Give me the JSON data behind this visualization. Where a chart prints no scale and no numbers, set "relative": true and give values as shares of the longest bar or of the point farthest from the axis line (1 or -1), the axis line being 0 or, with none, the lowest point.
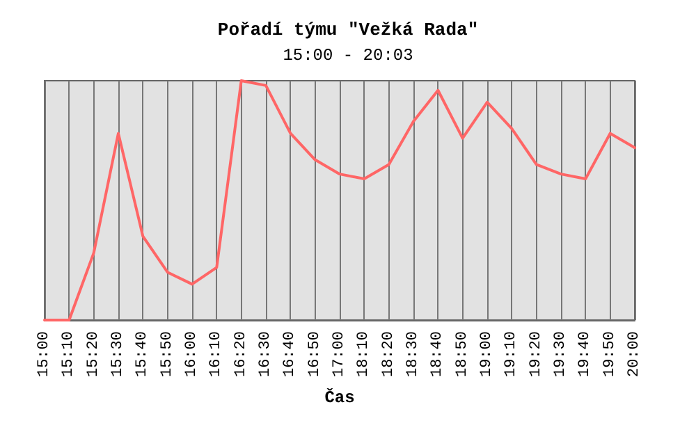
{
  "chart_data": {
    "type": "line",
    "title": "Pořadí týmu \"Vežká Rada\"",
    "subtitle": "15:00 - 20:03",
    "xlabel": "Čas",
    "categories": [
      "15:00",
      "15:10",
      "15:20",
      "15:30",
      "15:40",
      "15:50",
      "16:00",
      "16:10",
      "16:20",
      "16:30",
      "16:40",
      "16:50",
      "17:00",
      "18:10",
      "18:20",
      "18:30",
      "18:40",
      "18:50",
      "19:00",
      "19:10",
      "19:20",
      "19:30",
      "19:40",
      "19:50",
      "20:00"
    ],
    "series": [
      {
        "color": "#ff6666",
        "values": [
          0,
          0,
          0.28,
          0.78,
          0.35,
          0.2,
          0.15,
          0.22,
          1,
          0.98,
          0.78,
          0.67,
          0.61,
          0.59,
          0.65,
          0.83,
          0.96,
          0.76,
          0.91,
          0.8,
          0.65,
          0.61,
          0.59,
          0.78,
          0.72
        ]
      }
    ],
    "relative": true,
    "grid": "x",
    "tick_labels": "x",
    "marker": "none",
    "line_style": "solid"
  }
}
